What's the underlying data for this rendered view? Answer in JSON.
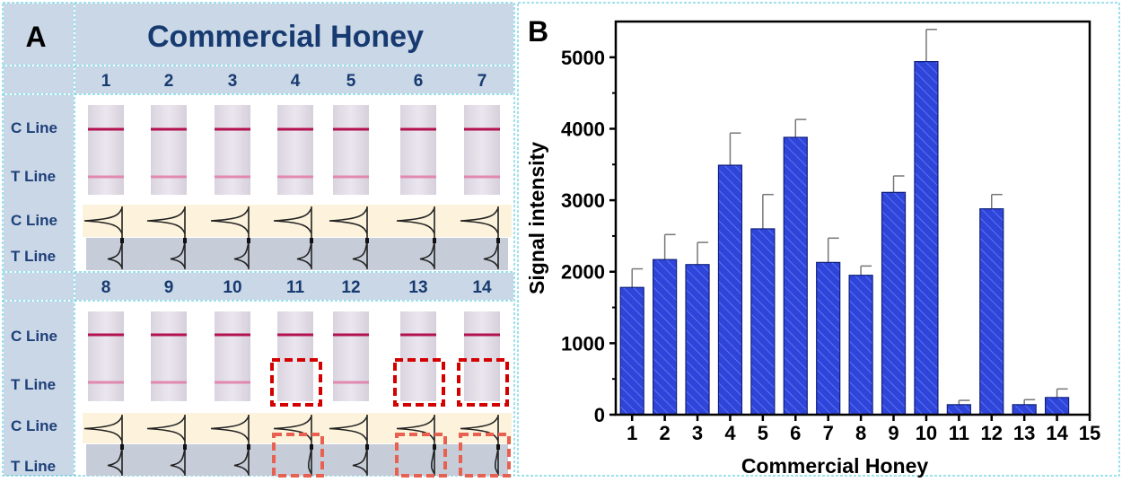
{
  "panel_a": {
    "letter": "A",
    "title": "Commercial Honey",
    "top_numbers": [
      "1",
      "2",
      "3",
      "4",
      "5",
      "6",
      "7"
    ],
    "bottom_numbers": [
      "8",
      "9",
      "10",
      "11",
      "12",
      "13",
      "14"
    ],
    "c_line": "C Line",
    "t_line": "T Line",
    "negative_samples": [
      "11",
      "13",
      "14"
    ],
    "colors": {
      "header_bg": "#c9d7e6",
      "label_text": "#1f3f7a",
      "title_text": "#173a70",
      "strip_line": "#c2185b",
      "highlight_box": "#d40000",
      "peak_bg_c": "#fdf3dc",
      "peak_bg_t": "#c6ccd8",
      "border": "#3ec3d8"
    }
  },
  "panel_b": {
    "letter": "B"
  },
  "chart_data": {
    "type": "bar",
    "categories": [
      "1",
      "2",
      "3",
      "4",
      "5",
      "6",
      "7",
      "8",
      "9",
      "10",
      "11",
      "12",
      "13",
      "14"
    ],
    "values": [
      1780,
      2170,
      2100,
      3490,
      2600,
      3880,
      2130,
      1950,
      3110,
      4940,
      140,
      2880,
      140,
      240
    ],
    "errors": [
      260,
      350,
      310,
      450,
      480,
      250,
      340,
      130,
      230,
      450,
      60,
      200,
      70,
      120
    ],
    "xlabel": "Commercial Honey",
    "ylabel": "Signal intensity",
    "ylim": [
      0,
      5500
    ],
    "xlim": [
      0.5,
      15
    ],
    "yticks": [
      "0",
      "1000",
      "2000",
      "3000",
      "4000",
      "5000"
    ],
    "xticks": [
      "1",
      "2",
      "3",
      "4",
      "5",
      "6",
      "7",
      "8",
      "9",
      "10",
      "11",
      "12",
      "13",
      "14",
      "15"
    ],
    "bar_color": "#2f45d9",
    "grid": false
  }
}
